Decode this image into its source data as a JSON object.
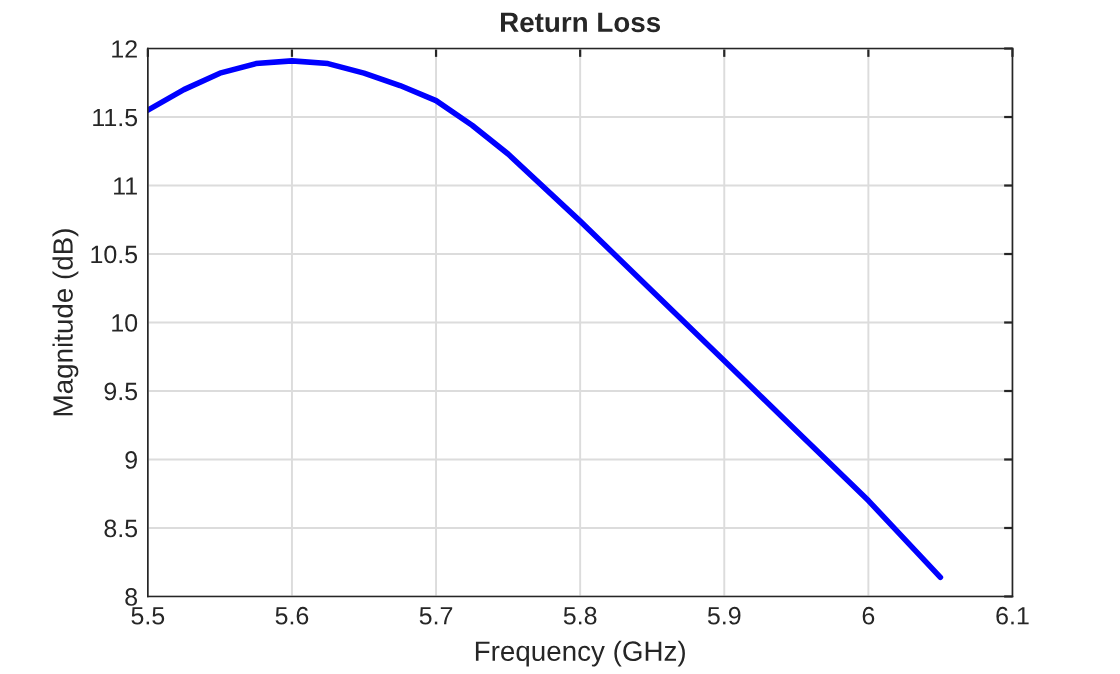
{
  "chart_data": {
    "type": "line",
    "title": "Return Loss",
    "xlabel": "Frequency (GHz)",
    "ylabel": "Magnitude (dB)",
    "series": [
      {
        "color": "#0000ff",
        "x": [
          5.5,
          5.525,
          5.55,
          5.575,
          5.6,
          5.625,
          5.65,
          5.675,
          5.7,
          5.725,
          5.75,
          5.8,
          5.85,
          5.9,
          5.95,
          6.0,
          6.05
        ],
        "values": [
          11.55,
          11.7,
          11.82,
          11.89,
          11.91,
          11.89,
          11.82,
          11.73,
          11.62,
          11.44,
          11.23,
          10.74,
          10.23,
          9.72,
          9.21,
          8.7,
          8.14
        ]
      }
    ],
    "xlim": [
      5.5,
      6.1
    ],
    "xticks": [
      5.5,
      5.6,
      5.7,
      5.8,
      5.9,
      6,
      6.1
    ],
    "ylim": [
      8,
      12
    ],
    "yticks": [
      8,
      8.5,
      9,
      9.5,
      10,
      10.5,
      11,
      11.5,
      12
    ],
    "grid": true,
    "marker": "none",
    "line_style": "solid"
  }
}
